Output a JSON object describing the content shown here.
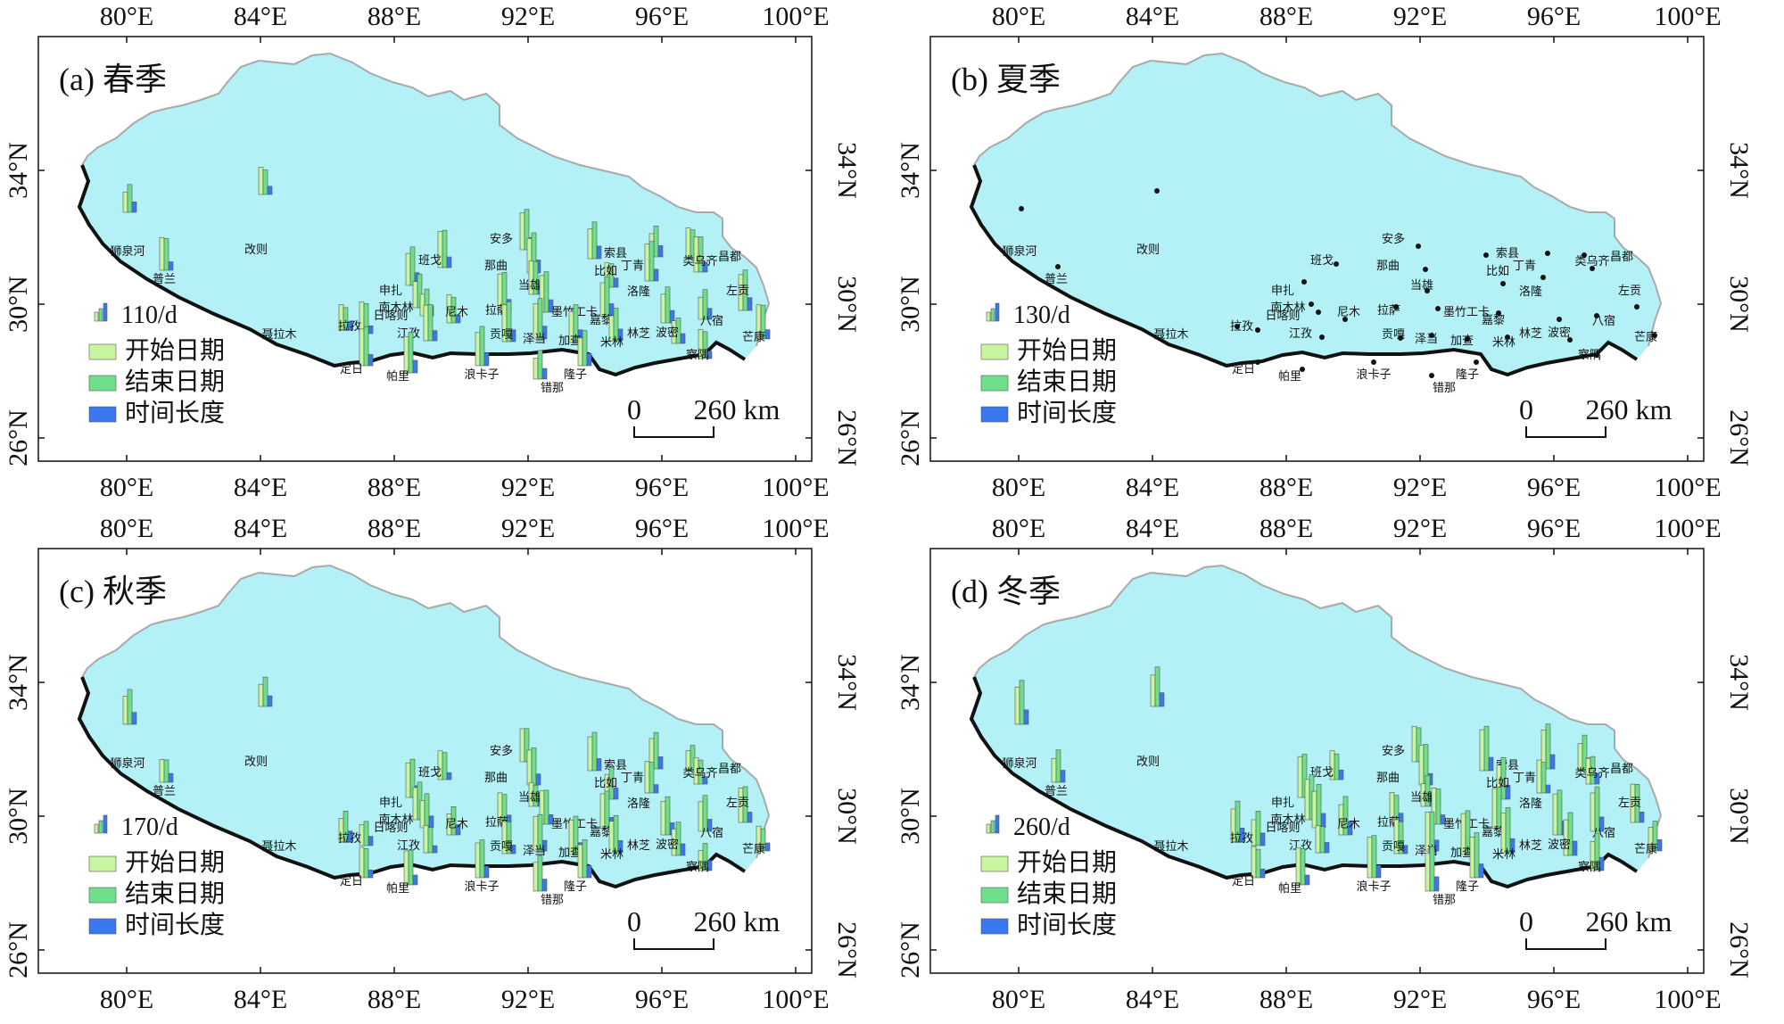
{
  "colors": {
    "plateau_fill": "#b3f1f7",
    "border_south": "#111111",
    "border_north": "#a9a9a9",
    "start_bar": "#c8f5a0",
    "end_bar": "#6ee08c",
    "duration_bar": "#3a78f0"
  },
  "axes": {
    "lon_ticks": [
      "80°E",
      "84°E",
      "88°E",
      "92°E",
      "96°E",
      "100°E"
    ],
    "lat_ticks": [
      "26°N",
      "30°N",
      "34°N"
    ]
  },
  "legend": {
    "start_label": "开始日期",
    "end_label": "结束日期",
    "duration_label": "时间长度"
  },
  "scale_bar": {
    "zero": "0",
    "label": "260 km"
  },
  "stations": [
    {
      "name": "狮泉河"
    },
    {
      "name": "改则"
    },
    {
      "name": "普兰"
    },
    {
      "name": "班戈"
    },
    {
      "name": "安多"
    },
    {
      "name": "那曲"
    },
    {
      "name": "索县"
    },
    {
      "name": "丁青"
    },
    {
      "name": "比如"
    },
    {
      "name": "昌都"
    },
    {
      "name": "类乌齐"
    },
    {
      "name": "洛隆"
    },
    {
      "name": "左贡"
    },
    {
      "name": "申扎"
    },
    {
      "name": "南木林"
    },
    {
      "name": "日喀则"
    },
    {
      "name": "尼木"
    },
    {
      "name": "当雄"
    },
    {
      "name": "拉萨"
    },
    {
      "name": "墨竹工卡"
    },
    {
      "name": "嘉黎"
    },
    {
      "name": "林芝"
    },
    {
      "name": "八宿"
    },
    {
      "name": "聂拉木"
    },
    {
      "name": "拉孜"
    },
    {
      "name": "江孜"
    },
    {
      "name": "贡嘎"
    },
    {
      "name": "泽当"
    },
    {
      "name": "加查"
    },
    {
      "name": "米林"
    },
    {
      "name": "波密"
    },
    {
      "name": "察隅"
    },
    {
      "name": "芒康"
    },
    {
      "name": "定日"
    },
    {
      "name": "帕里"
    },
    {
      "name": "浪卡子"
    },
    {
      "name": "隆子"
    },
    {
      "name": "错那"
    }
  ],
  "panels": [
    {
      "title": "(a) 春季",
      "legend_scale": "110/d"
    },
    {
      "title": "(b) 夏季",
      "legend_scale": "130/d"
    },
    {
      "title": "(c) 秋季",
      "legend_scale": "170/d"
    },
    {
      "title": "(d) 冬季",
      "legend_scale": "260/d"
    }
  ]
}
